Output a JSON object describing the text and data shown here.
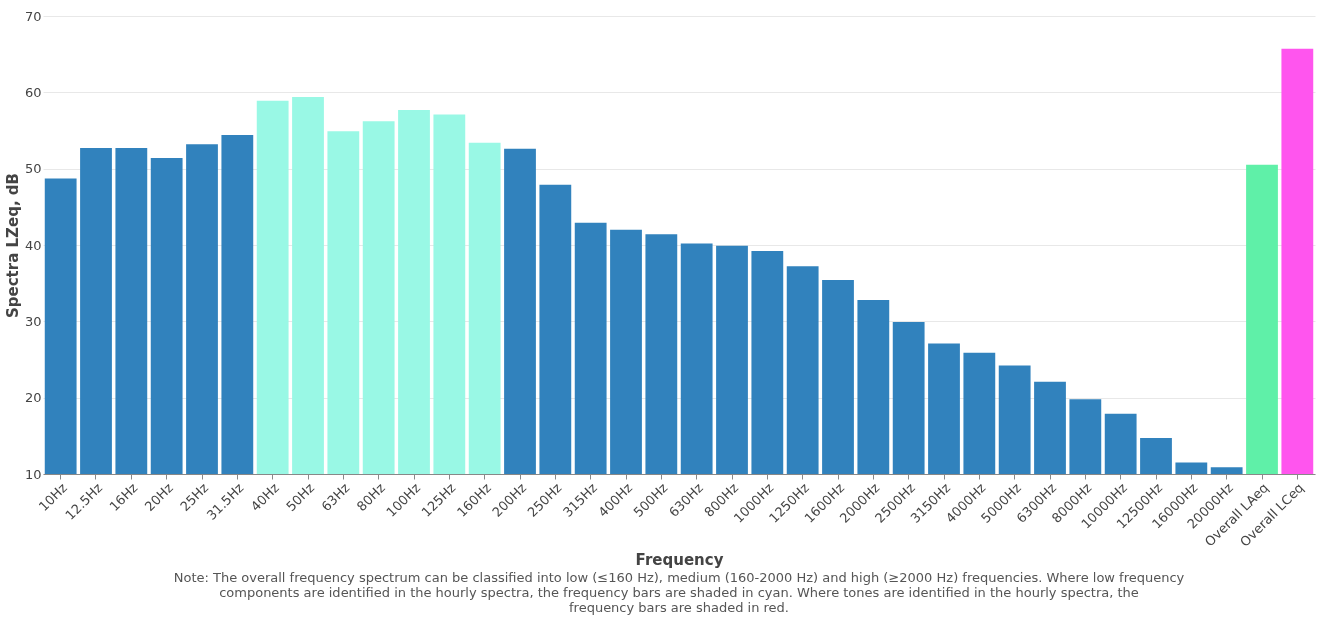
{
  "chart_data": {
    "type": "bar",
    "xlabel": "Frequency",
    "ylabel": "Spectra LZeq, dB",
    "categories": [
      "10Hz",
      "12.5Hz",
      "16Hz",
      "20Hz",
      "25Hz",
      "31.5Hz",
      "40Hz",
      "50Hz",
      "63Hz",
      "80Hz",
      "100Hz",
      "125Hz",
      "160Hz",
      "200Hz",
      "250Hz",
      "315Hz",
      "400Hz",
      "500Hz",
      "630Hz",
      "800Hz",
      "1000Hz",
      "1250Hz",
      "1600Hz",
      "2000Hz",
      "2500Hz",
      "3150Hz",
      "4000Hz",
      "5000Hz",
      "6300Hz",
      "8000Hz",
      "10000Hz",
      "12500Hz",
      "16000Hz",
      "20000Hz",
      "Overall LAeq",
      "Overall LCeq"
    ],
    "values": [
      48.7,
      52.7,
      52.7,
      51.4,
      53.2,
      54.4,
      58.9,
      59.4,
      54.9,
      56.2,
      57.7,
      57.1,
      53.4,
      52.6,
      47.9,
      42.9,
      42.0,
      41.4,
      40.2,
      39.9,
      39.2,
      37.2,
      35.4,
      32.8,
      29.9,
      27.1,
      25.9,
      24.2,
      22.1,
      19.8,
      17.9,
      14.7,
      11.5,
      10.9,
      50.5,
      65.7
    ],
    "colors": [
      "#3182bd",
      "#3182bd",
      "#3182bd",
      "#3182bd",
      "#3182bd",
      "#3182bd",
      "#99f8e5",
      "#99f8e5",
      "#99f8e5",
      "#99f8e5",
      "#99f8e5",
      "#99f8e5",
      "#99f8e5",
      "#3182bd",
      "#3182bd",
      "#3182bd",
      "#3182bd",
      "#3182bd",
      "#3182bd",
      "#3182bd",
      "#3182bd",
      "#3182bd",
      "#3182bd",
      "#3182bd",
      "#3182bd",
      "#3182bd",
      "#3182bd",
      "#3182bd",
      "#3182bd",
      "#3182bd",
      "#3182bd",
      "#3182bd",
      "#3182bd",
      "#3182bd",
      "#5ff0a8",
      "#ff55ee"
    ],
    "ylim": [
      10,
      70
    ],
    "yticks": [
      10,
      20,
      30,
      40,
      50,
      60,
      70
    ],
    "grid": "y",
    "annotations": [
      "Note: The overall frequency spectrum can be classified into low (≤160 Hz), medium (160-2000 Hz) and high (≥2000 Hz) frequencies. Where low frequency components are identified in the hourly spectra, the frequency bars are shaded in cyan. Where tones are identified in the hourly spectra, the frequency bars are shaded in red."
    ]
  }
}
